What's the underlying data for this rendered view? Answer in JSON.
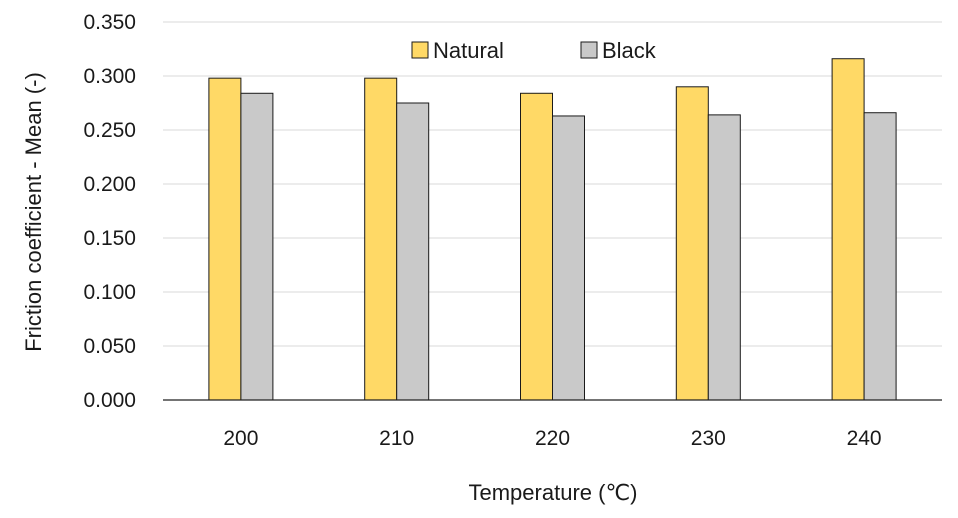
{
  "chart_data": {
    "type": "bar",
    "title": "",
    "xlabel": "Temperature (℃)",
    "ylabel": "Friction coefficient - Mean (-)",
    "categories": [
      "200",
      "210",
      "220",
      "230",
      "240"
    ],
    "series": [
      {
        "name": "Natural",
        "color": "#FFD966",
        "values": [
          0.298,
          0.298,
          0.284,
          0.29,
          0.316
        ]
      },
      {
        "name": "Black",
        "color": "#C9C9C9",
        "values": [
          0.284,
          0.275,
          0.263,
          0.264,
          0.266
        ]
      }
    ],
    "ylim": [
      0,
      0.35
    ],
    "yticks": [
      "0.000",
      "0.050",
      "0.100",
      "0.150",
      "0.200",
      "0.250",
      "0.300",
      "0.350"
    ],
    "grid": true,
    "legend_position": "top-center"
  }
}
